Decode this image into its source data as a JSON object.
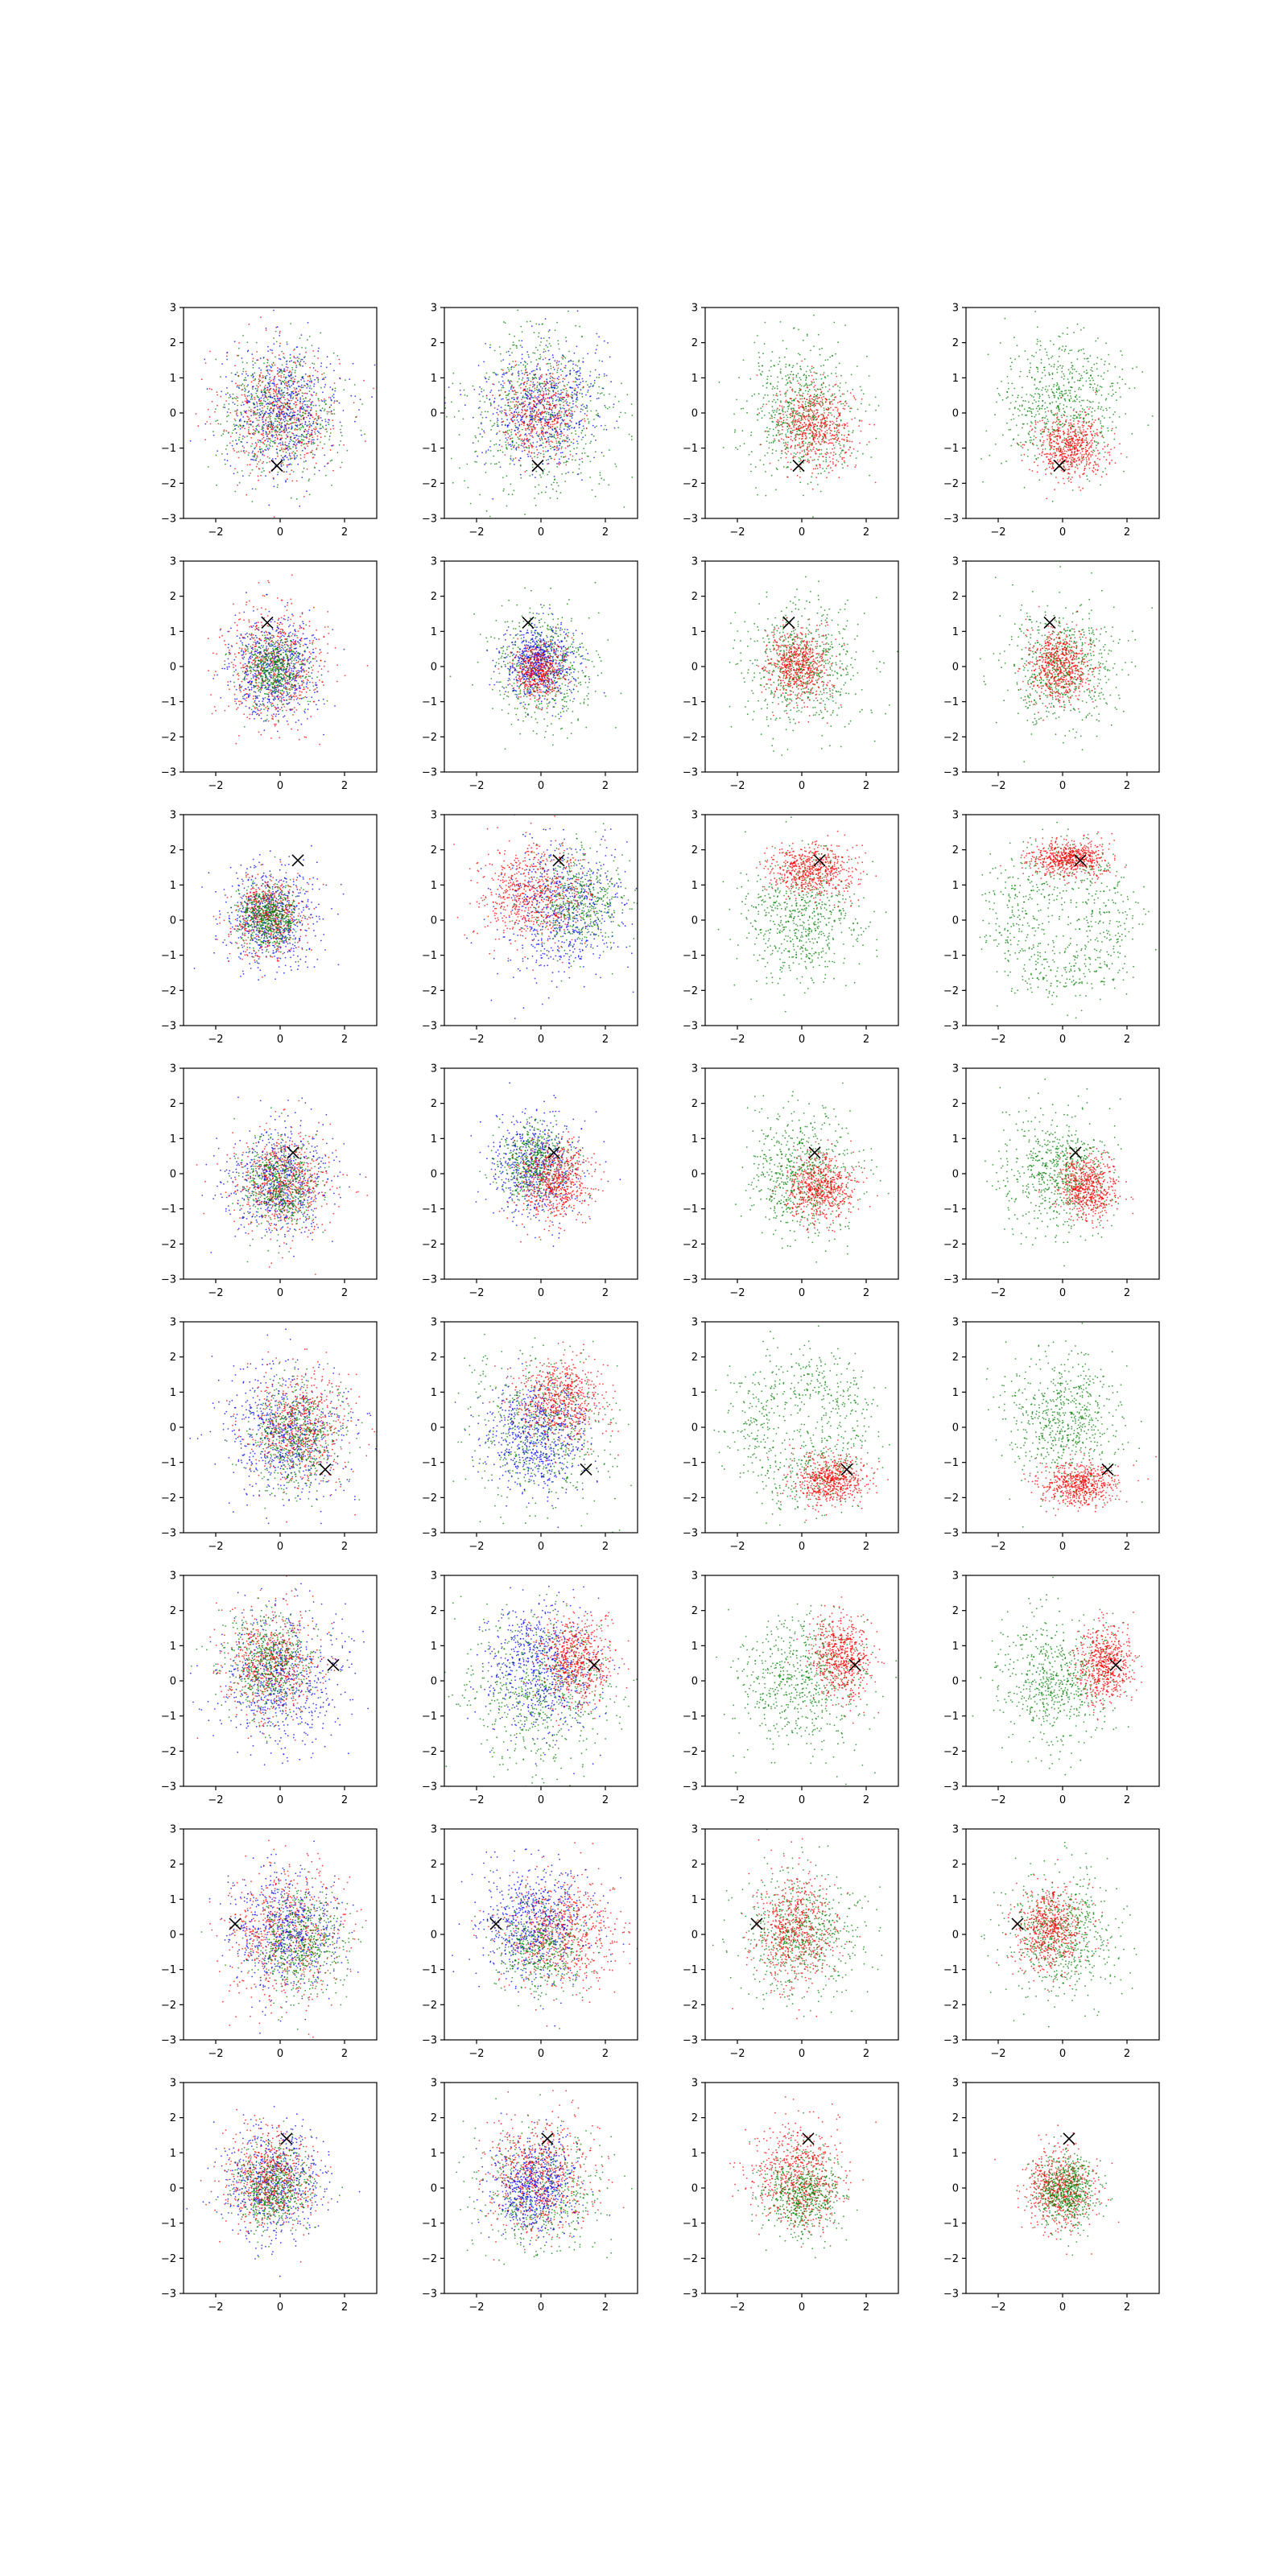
{
  "chart_data": {
    "type": "scatter",
    "layout": {
      "rows": 8,
      "cols": 4
    },
    "xlim": [
      -3,
      3
    ],
    "ylim": [
      -3,
      3
    ],
    "xticks": [
      -2,
      0,
      2
    ],
    "yticks": [
      -3,
      -2,
      -1,
      0,
      1,
      2,
      3
    ],
    "xtick_labels": [
      "−2",
      "0",
      "2"
    ],
    "ytick_labels": [
      "−3",
      "−2",
      "−1",
      "0",
      "1",
      "2",
      "3"
    ],
    "grid": false,
    "title": "",
    "xlabel": "",
    "ylabel": "",
    "colors": {
      "red": "#ff0000",
      "green": "#008000",
      "blue": "#0000ff",
      "marker": "#000000"
    },
    "marker_symbol": "x",
    "rows": [
      {
        "marker": [
          -0.1,
          -1.5
        ],
        "panels": [
          {
            "clusters": [
              {
                "color": "red",
                "cx": 0.0,
                "cy": 0.0,
                "sx": 0.9,
                "sy": 0.9,
                "n": 600
              },
              {
                "color": "green",
                "cx": 0.0,
                "cy": 0.0,
                "sx": 0.9,
                "sy": 0.9,
                "n": 600
              },
              {
                "color": "blue",
                "cx": 0.1,
                "cy": 0.1,
                "sx": 0.9,
                "sy": 0.9,
                "n": 600
              }
            ]
          },
          {
            "clusters": [
              {
                "color": "green",
                "cx": 0.0,
                "cy": 0.0,
                "sx": 1.2,
                "sy": 1.2,
                "n": 700
              },
              {
                "color": "blue",
                "cx": 0.0,
                "cy": 0.2,
                "sx": 0.9,
                "sy": 0.9,
                "n": 600
              },
              {
                "color": "red",
                "cx": 0.0,
                "cy": 0.0,
                "sx": 0.6,
                "sy": 0.6,
                "n": 450
              }
            ]
          },
          {
            "clusters": [
              {
                "color": "green",
                "cx": 0.0,
                "cy": 0.1,
                "sx": 0.9,
                "sy": 0.9,
                "n": 650
              },
              {
                "color": "red",
                "cx": 0.4,
                "cy": -0.4,
                "sx": 0.6,
                "sy": 0.6,
                "n": 600
              }
            ]
          },
          {
            "clusters": [
              {
                "color": "green",
                "cx": 0.0,
                "cy": 0.3,
                "sx": 0.95,
                "sy": 0.95,
                "n": 650
              },
              {
                "color": "red",
                "cx": 0.2,
                "cy": -1.0,
                "sx": 0.55,
                "sy": 0.45,
                "n": 600
              }
            ]
          }
        ]
      },
      {
        "marker": [
          -0.4,
          1.25
        ],
        "panels": [
          {
            "clusters": [
              {
                "color": "red",
                "cx": -0.2,
                "cy": 0.0,
                "sx": 0.8,
                "sy": 0.8,
                "n": 600
              },
              {
                "color": "blue",
                "cx": -0.2,
                "cy": 0.0,
                "sx": 0.7,
                "sy": 0.7,
                "n": 600
              },
              {
                "color": "green",
                "cx": -0.2,
                "cy": -0.1,
                "sx": 0.5,
                "sy": 0.5,
                "n": 550
              }
            ]
          },
          {
            "clusters": [
              {
                "color": "green",
                "cx": 0.0,
                "cy": 0.0,
                "sx": 0.8,
                "sy": 0.8,
                "n": 600
              },
              {
                "color": "blue",
                "cx": -0.1,
                "cy": 0.1,
                "sx": 0.55,
                "sy": 0.55,
                "n": 600
              },
              {
                "color": "red",
                "cx": -0.1,
                "cy": -0.1,
                "sx": 0.4,
                "sy": 0.4,
                "n": 450
              }
            ]
          },
          {
            "clusters": [
              {
                "color": "green",
                "cx": 0.0,
                "cy": 0.0,
                "sx": 0.9,
                "sy": 0.9,
                "n": 650
              },
              {
                "color": "red",
                "cx": -0.1,
                "cy": 0.0,
                "sx": 0.5,
                "sy": 0.5,
                "n": 600
              }
            ]
          },
          {
            "clusters": [
              {
                "color": "green",
                "cx": 0.0,
                "cy": 0.0,
                "sx": 0.85,
                "sy": 0.85,
                "n": 650
              },
              {
                "color": "red",
                "cx": -0.1,
                "cy": 0.0,
                "sx": 0.5,
                "sy": 0.5,
                "n": 600
              }
            ]
          }
        ]
      },
      {
        "marker": [
          0.55,
          1.7
        ],
        "panels": [
          {
            "clusters": [
              {
                "color": "blue",
                "cx": -0.3,
                "cy": 0.1,
                "sx": 0.7,
                "sy": 0.7,
                "n": 600
              },
              {
                "color": "red",
                "cx": -0.4,
                "cy": 0.1,
                "sx": 0.55,
                "sy": 0.55,
                "n": 500
              },
              {
                "color": "green",
                "cx": -0.4,
                "cy": 0.1,
                "sx": 0.45,
                "sy": 0.45,
                "n": 600
              }
            ]
          },
          {
            "clusters": [
              {
                "color": "blue",
                "cx": 0.6,
                "cy": 0.3,
                "sx": 1.0,
                "sy": 1.0,
                "n": 650
              },
              {
                "color": "green",
                "cx": 1.2,
                "cy": 0.5,
                "sx": 0.7,
                "sy": 0.7,
                "n": 500
              },
              {
                "color": "red",
                "cx": -0.3,
                "cy": 0.7,
                "sx": 0.8,
                "sy": 0.7,
                "n": 650
              }
            ]
          },
          {
            "clusters": [
              {
                "color": "green",
                "cx": 0.0,
                "cy": 0.1,
                "sx": 0.9,
                "sy": 0.9,
                "n": 650
              },
              {
                "color": "red",
                "cx": 0.3,
                "cy": 1.4,
                "sx": 0.65,
                "sy": 0.35,
                "n": 600
              }
            ]
          },
          {
            "clusters": [
              {
                "color": "green",
                "cx": 0.0,
                "cy": 0.0,
                "sx": 1.6,
                "sy": 1.6,
                "n": 700,
                "ring": true
              },
              {
                "color": "red",
                "cx": 0.2,
                "cy": 1.75,
                "sx": 0.6,
                "sy": 0.25,
                "n": 600
              }
            ]
          }
        ]
      },
      {
        "marker": [
          0.4,
          0.6
        ],
        "panels": [
          {
            "clusters": [
              {
                "color": "blue",
                "cx": 0.0,
                "cy": -0.2,
                "sx": 0.8,
                "sy": 0.8,
                "n": 600
              },
              {
                "color": "red",
                "cx": 0.1,
                "cy": -0.3,
                "sx": 0.7,
                "sy": 0.7,
                "n": 600
              },
              {
                "color": "green",
                "cx": 0.0,
                "cy": -0.3,
                "sx": 0.6,
                "sy": 0.6,
                "n": 550
              }
            ]
          },
          {
            "clusters": [
              {
                "color": "blue",
                "cx": -0.1,
                "cy": 0.2,
                "sx": 0.7,
                "sy": 0.7,
                "n": 600
              },
              {
                "color": "green",
                "cx": -0.2,
                "cy": 0.3,
                "sx": 0.55,
                "sy": 0.55,
                "n": 500
              },
              {
                "color": "red",
                "cx": 0.4,
                "cy": -0.2,
                "sx": 0.55,
                "sy": 0.55,
                "n": 600
              }
            ]
          },
          {
            "clusters": [
              {
                "color": "green",
                "cx": 0.0,
                "cy": 0.0,
                "sx": 0.85,
                "sy": 0.85,
                "n": 650
              },
              {
                "color": "red",
                "cx": 0.6,
                "cy": -0.4,
                "sx": 0.5,
                "sy": 0.5,
                "n": 600
              }
            ]
          },
          {
            "clusters": [
              {
                "color": "green",
                "cx": -0.2,
                "cy": 0.0,
                "sx": 0.8,
                "sy": 0.8,
                "n": 650
              },
              {
                "color": "red",
                "cx": 0.8,
                "cy": -0.4,
                "sx": 0.45,
                "sy": 0.45,
                "n": 600
              }
            ]
          }
        ]
      },
      {
        "marker": [
          1.4,
          -1.2
        ],
        "panels": [
          {
            "clusters": [
              {
                "color": "blue",
                "cx": 0.1,
                "cy": -0.2,
                "sx": 0.95,
                "sy": 0.95,
                "n": 650
              },
              {
                "color": "red",
                "cx": 0.6,
                "cy": 0.0,
                "sx": 0.75,
                "sy": 0.8,
                "n": 600
              },
              {
                "color": "green",
                "cx": 0.5,
                "cy": -0.2,
                "sx": 0.75,
                "sy": 0.8,
                "n": 550
              }
            ]
          },
          {
            "clusters": [
              {
                "color": "green",
                "cx": 0.0,
                "cy": 0.0,
                "sx": 1.1,
                "sy": 1.1,
                "n": 600
              },
              {
                "color": "blue",
                "cx": -0.1,
                "cy": -0.2,
                "sx": 0.8,
                "sy": 0.8,
                "n": 650
              },
              {
                "color": "red",
                "cx": 0.6,
                "cy": 0.8,
                "sx": 0.7,
                "sy": 0.6,
                "n": 600
              }
            ]
          },
          {
            "clusters": [
              {
                "color": "green",
                "cx": 0.0,
                "cy": 0.0,
                "sx": 1.55,
                "sy": 1.55,
                "n": 700,
                "ring": true
              },
              {
                "color": "red",
                "cx": 0.9,
                "cy": -1.5,
                "sx": 0.55,
                "sy": 0.35,
                "n": 600
              }
            ]
          },
          {
            "clusters": [
              {
                "color": "green",
                "cx": 0.0,
                "cy": 0.2,
                "sx": 0.9,
                "sy": 0.9,
                "n": 650
              },
              {
                "color": "red",
                "cx": 0.5,
                "cy": -1.6,
                "sx": 0.6,
                "sy": 0.3,
                "n": 600
              }
            ]
          }
        ]
      },
      {
        "marker": [
          1.65,
          0.45
        ],
        "panels": [
          {
            "clusters": [
              {
                "color": "blue",
                "cx": 0.0,
                "cy": 0.0,
                "sx": 0.95,
                "sy": 0.95,
                "n": 650
              },
              {
                "color": "red",
                "cx": -0.3,
                "cy": 0.5,
                "sx": 0.75,
                "sy": 0.75,
                "n": 600
              },
              {
                "color": "green",
                "cx": -0.3,
                "cy": 0.5,
                "sx": 0.7,
                "sy": 0.7,
                "n": 550
              }
            ]
          },
          {
            "clusters": [
              {
                "color": "green",
                "cx": 0.0,
                "cy": -0.3,
                "sx": 1.1,
                "sy": 1.1,
                "n": 650
              },
              {
                "color": "blue",
                "cx": 0.0,
                "cy": 0.3,
                "sx": 0.9,
                "sy": 0.9,
                "n": 650
              },
              {
                "color": "red",
                "cx": 1.1,
                "cy": 0.6,
                "sx": 0.55,
                "sy": 0.6,
                "n": 600
              }
            ]
          },
          {
            "clusters": [
              {
                "color": "green",
                "cx": 0.0,
                "cy": 0.0,
                "sx": 0.95,
                "sy": 0.95,
                "n": 650
              },
              {
                "color": "red",
                "cx": 1.2,
                "cy": 0.7,
                "sx": 0.45,
                "sy": 0.6,
                "n": 600
              }
            ]
          },
          {
            "clusters": [
              {
                "color": "green",
                "cx": -0.2,
                "cy": 0.0,
                "sx": 0.9,
                "sy": 0.9,
                "n": 650
              },
              {
                "color": "red",
                "cx": 1.3,
                "cy": 0.5,
                "sx": 0.4,
                "sy": 0.55,
                "n": 600
              }
            ]
          }
        ]
      },
      {
        "marker": [
          -1.4,
          0.3
        ],
        "panels": [
          {
            "clusters": [
              {
                "color": "red",
                "cx": 0.1,
                "cy": 0.0,
                "sx": 0.95,
                "sy": 0.95,
                "n": 650
              },
              {
                "color": "blue",
                "cx": 0.2,
                "cy": 0.1,
                "sx": 0.85,
                "sy": 0.85,
                "n": 600
              },
              {
                "color": "green",
                "cx": 0.6,
                "cy": -0.3,
                "sx": 0.7,
                "sy": 0.7,
                "n": 550
              }
            ]
          },
          {
            "clusters": [
              {
                "color": "red",
                "cx": 0.6,
                "cy": 0.0,
                "sx": 0.9,
                "sy": 0.8,
                "n": 650
              },
              {
                "color": "blue",
                "cx": -0.2,
                "cy": 0.3,
                "sx": 0.85,
                "sy": 0.85,
                "n": 650
              },
              {
                "color": "green",
                "cx": 0.0,
                "cy": -0.3,
                "sx": 0.7,
                "sy": 0.7,
                "n": 450
              }
            ]
          },
          {
            "clusters": [
              {
                "color": "green",
                "cx": 0.0,
                "cy": 0.0,
                "sx": 0.9,
                "sy": 0.9,
                "n": 650
              },
              {
                "color": "red",
                "cx": -0.2,
                "cy": 0.1,
                "sx": 0.6,
                "sy": 0.75,
                "n": 600
              }
            ]
          },
          {
            "clusters": [
              {
                "color": "green",
                "cx": 0.0,
                "cy": 0.0,
                "sx": 0.85,
                "sy": 0.85,
                "n": 650
              },
              {
                "color": "red",
                "cx": -0.4,
                "cy": 0.2,
                "sx": 0.55,
                "sy": 0.6,
                "n": 600
              }
            ]
          }
        ]
      },
      {
        "marker": [
          0.2,
          1.4
        ],
        "panels": [
          {
            "clusters": [
              {
                "color": "blue",
                "cx": -0.2,
                "cy": 0.2,
                "sx": 0.8,
                "sy": 0.8,
                "n": 600
              },
              {
                "color": "red",
                "cx": -0.3,
                "cy": 0.3,
                "sx": 0.7,
                "sy": 0.7,
                "n": 600
              },
              {
                "color": "green",
                "cx": -0.2,
                "cy": 0.0,
                "sx": 0.6,
                "sy": 0.6,
                "n": 550
              }
            ]
          },
          {
            "clusters": [
              {
                "color": "green",
                "cx": 0.0,
                "cy": 0.0,
                "sx": 0.9,
                "sy": 0.9,
                "n": 500
              },
              {
                "color": "red",
                "cx": 0.0,
                "cy": 0.4,
                "sx": 0.75,
                "sy": 0.8,
                "n": 650
              },
              {
                "color": "blue",
                "cx": -0.2,
                "cy": 0.0,
                "sx": 0.65,
                "sy": 0.65,
                "n": 600
              }
            ]
          },
          {
            "clusters": [
              {
                "color": "red",
                "cx": -0.1,
                "cy": 0.3,
                "sx": 0.7,
                "sy": 0.75,
                "n": 650
              },
              {
                "color": "green",
                "cx": 0.0,
                "cy": -0.2,
                "sx": 0.6,
                "sy": 0.6,
                "n": 600
              }
            ]
          },
          {
            "clusters": [
              {
                "color": "red",
                "cx": -0.1,
                "cy": 0.0,
                "sx": 0.55,
                "sy": 0.6,
                "n": 600
              },
              {
                "color": "green",
                "cx": 0.1,
                "cy": -0.1,
                "sx": 0.45,
                "sy": 0.5,
                "n": 600
              }
            ]
          }
        ]
      }
    ]
  }
}
